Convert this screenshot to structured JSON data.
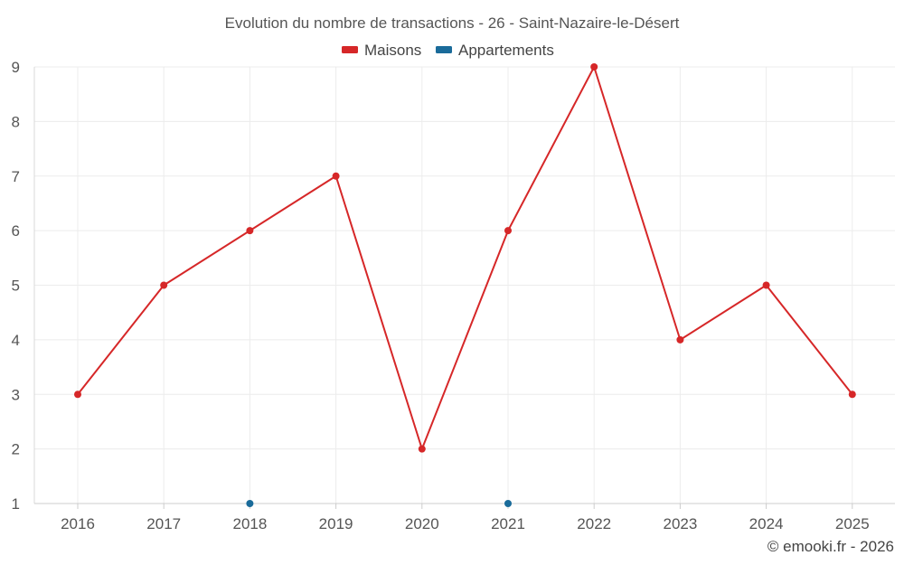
{
  "chart_data": {
    "type": "line",
    "title": "Evolution du nombre de transactions - 26 - Saint-Nazaire-le-Désert",
    "categories": [
      "2016",
      "2017",
      "2018",
      "2019",
      "2020",
      "2021",
      "2022",
      "2023",
      "2024",
      "2025"
    ],
    "series": [
      {
        "name": "Maisons",
        "color": "#d62728",
        "values": [
          3,
          5,
          6,
          7,
          2,
          6,
          9,
          4,
          5,
          3
        ]
      },
      {
        "name": "Appartements",
        "color": "#1a6b9a",
        "values": [
          null,
          null,
          1,
          null,
          null,
          1,
          null,
          null,
          null,
          null
        ]
      }
    ],
    "ylim": [
      1,
      9
    ],
    "yticks": [
      1,
      2,
      3,
      4,
      5,
      6,
      7,
      8,
      9
    ],
    "grid": true,
    "legend_position": "top-center",
    "xlabel": "",
    "ylabel": ""
  },
  "credit": "© emooki.fr - 2026"
}
